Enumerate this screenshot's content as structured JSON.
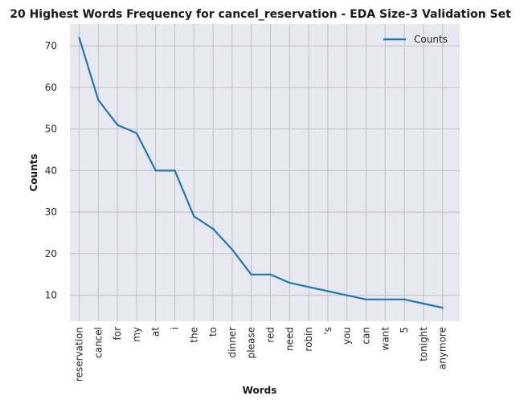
{
  "chart_data": {
    "type": "line",
    "title": "20 Highest Words Frequency for cancel_reservation - EDA Size-3 Validation Set",
    "xlabel": "Words",
    "ylabel": "Counts",
    "categories": [
      "reservation",
      "cancel",
      "for",
      "my",
      "at",
      "i",
      "the",
      "to",
      "dinner",
      "please",
      "red",
      "need",
      "robin",
      "'s",
      "you",
      "can",
      "want",
      "5",
      "tonight",
      "anymore"
    ],
    "series": [
      {
        "name": "Counts",
        "values": [
          72,
          57,
          51,
          49,
          40,
          40,
          29,
          26,
          21,
          15,
          15,
          13,
          12,
          11,
          10,
          9,
          9,
          9,
          8,
          7
        ],
        "color": "#1f77b4"
      }
    ],
    "yticks": [
      10,
      20,
      30,
      40,
      50,
      60,
      70
    ],
    "ylim": [
      3.75,
      75.25
    ],
    "grid": true,
    "legend_position": "top-right",
    "colors": {
      "plot_background": "#e8e8f1",
      "grid": "#c0c0c0",
      "line": "#1f77b4"
    }
  }
}
